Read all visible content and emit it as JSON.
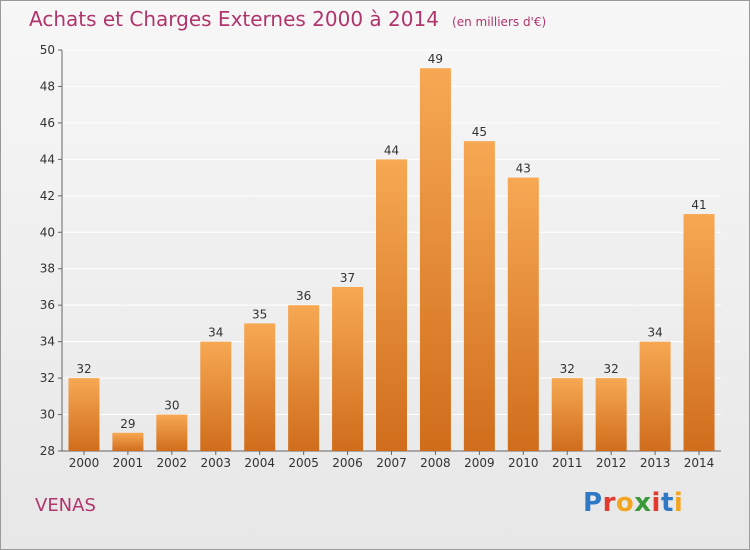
{
  "header": {
    "title": "Achats et Charges Externes 2000 à 2014",
    "subtitle": "(en milliers d'€)"
  },
  "place": "VENAS",
  "logo": {
    "text": "Proxiti",
    "letter_colors": [
      "#2f78c4",
      "#e23a2e",
      "#f2a51f",
      "#3a9a3a",
      "#e23a2e",
      "#2f78c4",
      "#f2a51f"
    ]
  },
  "colors": {
    "bar_top": "#f7a853",
    "bar_bottom": "#d06d1c",
    "grid": "#ffffff",
    "axis": "#666666",
    "text": "#333333"
  },
  "chart_data": {
    "type": "bar",
    "categories": [
      "2000",
      "2001",
      "2002",
      "2003",
      "2004",
      "2005",
      "2006",
      "2007",
      "2008",
      "2009",
      "2010",
      "2011",
      "2012",
      "2013",
      "2014"
    ],
    "values": [
      32,
      29,
      30,
      34,
      35,
      36,
      37,
      44,
      49,
      45,
      43,
      32,
      32,
      34,
      41
    ],
    "title": "Achats et Charges Externes 2000 à 2014",
    "subtitle": "(en milliers d'€)",
    "ylim": [
      28,
      50
    ],
    "yticks": [
      28,
      30,
      32,
      34,
      36,
      38,
      40,
      42,
      44,
      46,
      48,
      50
    ],
    "grid": true,
    "data_labels": true
  }
}
